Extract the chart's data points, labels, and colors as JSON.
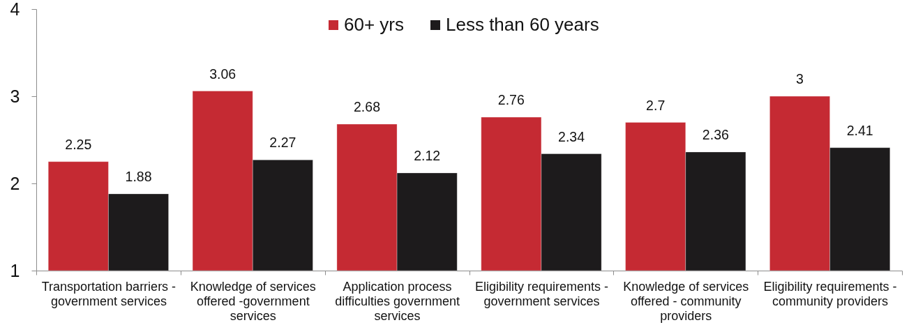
{
  "chart_data": {
    "type": "bar",
    "categories": [
      "Transportation barriers - government services",
      "Knowledge of services offered -government services",
      "Application process difficulties government services",
      "Eligibility requirements - government services",
      "Knowledge of services offered - community providers",
      "Eligibility requirements - community providers"
    ],
    "series": [
      {
        "name": "60+ yrs",
        "color": "#c52a33",
        "values": [
          2.25,
          3.06,
          2.68,
          2.76,
          2.7,
          3
        ]
      },
      {
        "name": "Less than 60 years",
        "color": "#1d1b1c",
        "values": [
          1.88,
          2.27,
          2.12,
          2.34,
          2.36,
          2.41
        ]
      }
    ],
    "ylim": [
      1,
      4
    ],
    "yticks": [
      1,
      2,
      3,
      4
    ],
    "data_labels": true,
    "legend": "top"
  }
}
